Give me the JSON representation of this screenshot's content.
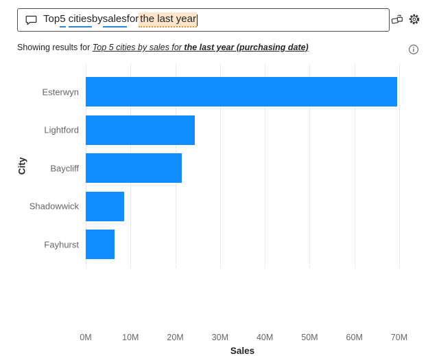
{
  "question_bar": {
    "segments": [
      {
        "text": "Top ",
        "style": "plain"
      },
      {
        "text": "5",
        "style": "recognized"
      },
      {
        "text": " ",
        "style": "plain"
      },
      {
        "text": "cities",
        "style": "recognized"
      },
      {
        "text": " by ",
        "style": "plain"
      },
      {
        "text": "sales",
        "style": "recognized"
      },
      {
        "text": " for ",
        "style": "plain"
      },
      {
        "text": "the last year",
        "style": "suggestion"
      }
    ],
    "full_text": "Top 5 cities by sales for the last year"
  },
  "icons": {
    "comment": "comment-bubble-icon",
    "to_visual": "convert-to-visual-icon",
    "settings": "settings-gear-icon",
    "info": "info-icon"
  },
  "result_line": {
    "prefix": "Showing results for ",
    "interpretation_normal": "Top 5 cities by sales for ",
    "interpretation_bold": "the last year (purchasing date)"
  },
  "chart_data": {
    "type": "bar",
    "orientation": "horizontal",
    "title": "",
    "categories": [
      "Esterwyn",
      "Lightford",
      "Baycliff",
      "Shadowwick",
      "Fayhurst"
    ],
    "values": [
      69.5,
      24.3,
      21.5,
      8.6,
      6.4
    ],
    "value_unit": "M",
    "xlabel": "Sales",
    "ylabel": "City",
    "xlim": [
      0,
      70
    ],
    "x_ticks": [
      "0M",
      "10M",
      "20M",
      "30M",
      "40M",
      "50M",
      "60M",
      "70M"
    ],
    "grid": "vertical-dotted",
    "legend": false,
    "bar_color": "#118DFF"
  },
  "colors": {
    "bar": "#118DFF",
    "recognized_underline": "#2B86D8",
    "suggestion_bg": "#FBE6CB",
    "suggestion_underline": "#E8913D",
    "text_dark": "#252423",
    "text_gray": "#666666",
    "gridline": "#D9D9D9"
  }
}
